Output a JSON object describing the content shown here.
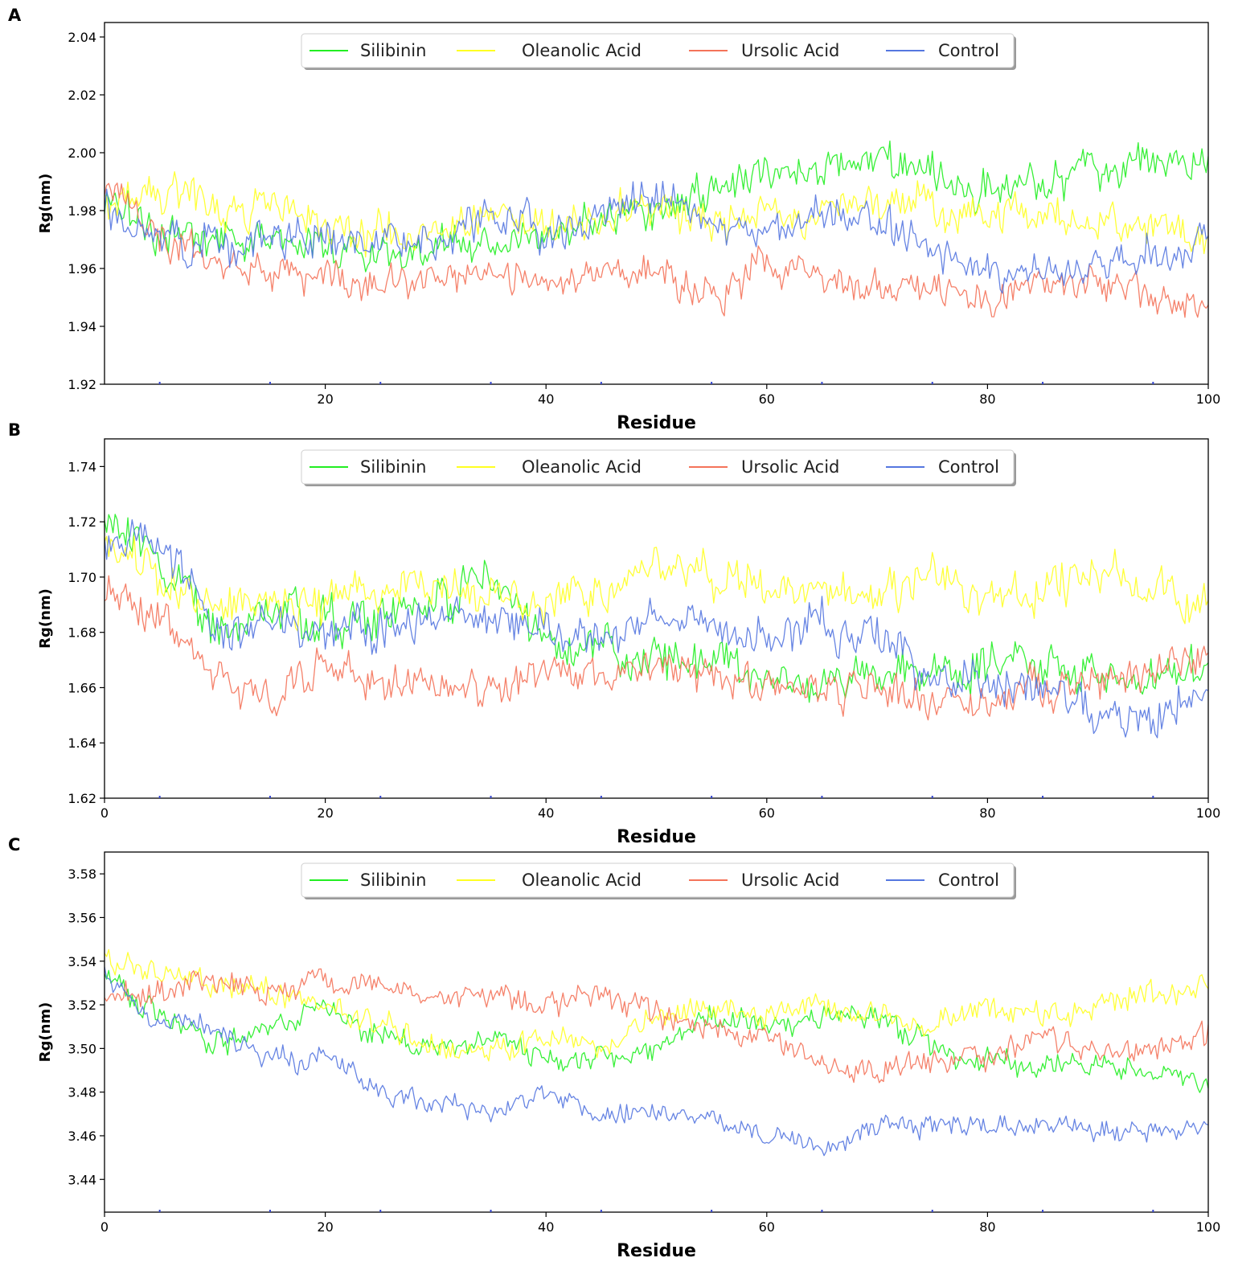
{
  "figure": {
    "series_colors": {
      "Silibinin": "#22ee22",
      "Oleanolic Acid": "#ffff22",
      "Ursolic Acid": "#f4735a",
      "Control": "#5577e0"
    }
  },
  "chart_data": [
    {
      "panel": "A",
      "type": "line",
      "xlabel": "Residue",
      "ylabel": "Rg(nm)",
      "xlim": [
        0,
        100
      ],
      "ylim": [
        1.92,
        2.045
      ],
      "xticks": [
        20,
        40,
        60,
        80,
        100
      ],
      "yticks": [
        1.92,
        1.94,
        1.96,
        1.98,
        2.0,
        2.02,
        2.04
      ],
      "ytick_decimals": 2,
      "legend": [
        "Silibinin",
        "Oleanolic Acid",
        "Ursolic Acid",
        "Control"
      ],
      "x": [
        0,
        5,
        10,
        15,
        20,
        25,
        30,
        35,
        40,
        45,
        50,
        55,
        60,
        65,
        70,
        75,
        80,
        85,
        90,
        95,
        100
      ],
      "series": [
        {
          "name": "Silibinin",
          "noise": 0.007,
          "values": [
            1.985,
            1.972,
            1.97,
            1.97,
            1.968,
            1.966,
            1.965,
            1.97,
            1.972,
            1.978,
            1.982,
            1.985,
            1.995,
            1.993,
            2.0,
            1.99,
            1.985,
            1.992,
            1.996,
            1.997,
            1.995
          ]
        },
        {
          "name": "Oleanolic Acid",
          "noise": 0.007,
          "values": [
            1.98,
            1.986,
            1.982,
            1.98,
            1.975,
            1.973,
            1.972,
            1.978,
            1.975,
            1.977,
            1.98,
            1.977,
            1.978,
            1.98,
            1.982,
            1.982,
            1.978,
            1.977,
            1.975,
            1.972,
            1.97
          ]
        },
        {
          "name": "Ursolic Acid",
          "noise": 0.006,
          "values": [
            1.99,
            1.97,
            1.962,
            1.96,
            1.956,
            1.955,
            1.958,
            1.96,
            1.955,
            1.957,
            1.96,
            1.95,
            1.962,
            1.955,
            1.955,
            1.952,
            1.95,
            1.955,
            1.956,
            1.95,
            1.948
          ]
        },
        {
          "name": "Control",
          "noise": 0.007,
          "values": [
            1.98,
            1.97,
            1.968,
            1.97,
            1.972,
            1.97,
            1.97,
            1.978,
            1.973,
            1.977,
            1.985,
            1.975,
            1.972,
            1.98,
            1.975,
            1.968,
            1.962,
            1.958,
            1.962,
            1.965,
            1.97
          ]
        }
      ]
    },
    {
      "panel": "B",
      "type": "line",
      "xlabel": "Residue",
      "ylabel": "Rg(nm)",
      "xlim": [
        0,
        100
      ],
      "ylim": [
        1.62,
        1.75
      ],
      "xticks": [
        0,
        20,
        40,
        60,
        80,
        100
      ],
      "yticks": [
        1.62,
        1.64,
        1.66,
        1.68,
        1.7,
        1.72,
        1.74
      ],
      "ytick_decimals": 2,
      "legend": [
        "Silibinin",
        "Oleanolic Acid",
        "Ursolic Acid",
        "Control"
      ],
      "x": [
        0,
        5,
        10,
        15,
        20,
        25,
        30,
        35,
        40,
        45,
        50,
        55,
        60,
        65,
        70,
        75,
        80,
        85,
        90,
        95,
        100
      ],
      "series": [
        {
          "name": "Silibinin",
          "noise": 0.008,
          "values": [
            1.725,
            1.705,
            1.68,
            1.69,
            1.685,
            1.685,
            1.69,
            1.7,
            1.675,
            1.675,
            1.67,
            1.668,
            1.665,
            1.66,
            1.665,
            1.665,
            1.668,
            1.67,
            1.665,
            1.665,
            1.665
          ]
        },
        {
          "name": "Oleanolic Acid",
          "noise": 0.008,
          "values": [
            1.71,
            1.7,
            1.69,
            1.69,
            1.69,
            1.695,
            1.695,
            1.695,
            1.69,
            1.695,
            1.705,
            1.698,
            1.7,
            1.695,
            1.695,
            1.7,
            1.69,
            1.695,
            1.702,
            1.695,
            1.69
          ]
        },
        {
          "name": "Ursolic Acid",
          "noise": 0.007,
          "values": [
            1.695,
            1.685,
            1.665,
            1.655,
            1.67,
            1.66,
            1.662,
            1.658,
            1.668,
            1.665,
            1.668,
            1.665,
            1.662,
            1.66,
            1.66,
            1.655,
            1.655,
            1.66,
            1.662,
            1.668,
            1.67
          ]
        },
        {
          "name": "Control",
          "noise": 0.008,
          "values": [
            1.71,
            1.715,
            1.68,
            1.685,
            1.68,
            1.682,
            1.685,
            1.685,
            1.68,
            1.678,
            1.685,
            1.682,
            1.68,
            1.682,
            1.68,
            1.665,
            1.662,
            1.66,
            1.65,
            1.648,
            1.658
          ]
        }
      ]
    },
    {
      "panel": "C",
      "type": "line",
      "xlabel": "Residue",
      "ylabel": "Rg(nm)",
      "xlim": [
        0,
        100
      ],
      "ylim": [
        3.425,
        3.59
      ],
      "xticks": [
        0,
        20,
        40,
        60,
        80,
        100
      ],
      "yticks": [
        3.44,
        3.46,
        3.48,
        3.5,
        3.52,
        3.54,
        3.56,
        3.58
      ],
      "ytick_decimals": 2,
      "legend": [
        "Silibinin",
        "Oleanolic Acid",
        "Ursolic Acid",
        "Control"
      ],
      "x": [
        0,
        5,
        10,
        15,
        20,
        25,
        30,
        35,
        40,
        45,
        50,
        55,
        60,
        65,
        70,
        75,
        80,
        85,
        90,
        95,
        100
      ],
      "series": [
        {
          "name": "Silibinin",
          "noise": 0.006,
          "values": [
            3.535,
            3.515,
            3.5,
            3.51,
            3.52,
            3.505,
            3.5,
            3.505,
            3.495,
            3.495,
            3.5,
            3.515,
            3.51,
            3.515,
            3.515,
            3.5,
            3.495,
            3.49,
            3.495,
            3.49,
            3.485
          ]
        },
        {
          "name": "Oleanolic Acid",
          "noise": 0.006,
          "values": [
            3.54,
            3.535,
            3.53,
            3.525,
            3.52,
            3.51,
            3.5,
            3.5,
            3.505,
            3.5,
            3.515,
            3.52,
            3.515,
            3.52,
            3.515,
            3.51,
            3.52,
            3.515,
            3.52,
            3.525,
            3.53
          ]
        },
        {
          "name": "Ursolic Acid",
          "noise": 0.006,
          "values": [
            3.525,
            3.525,
            3.53,
            3.525,
            3.53,
            3.53,
            3.525,
            3.525,
            3.52,
            3.525,
            3.515,
            3.51,
            3.505,
            3.495,
            3.49,
            3.495,
            3.495,
            3.505,
            3.5,
            3.5,
            3.505
          ]
        },
        {
          "name": "Control",
          "noise": 0.005,
          "values": [
            3.535,
            3.51,
            3.51,
            3.495,
            3.495,
            3.48,
            3.475,
            3.47,
            3.48,
            3.47,
            3.47,
            3.47,
            3.46,
            3.455,
            3.465,
            3.465,
            3.465,
            3.465,
            3.463,
            3.463,
            3.465
          ]
        }
      ]
    }
  ]
}
